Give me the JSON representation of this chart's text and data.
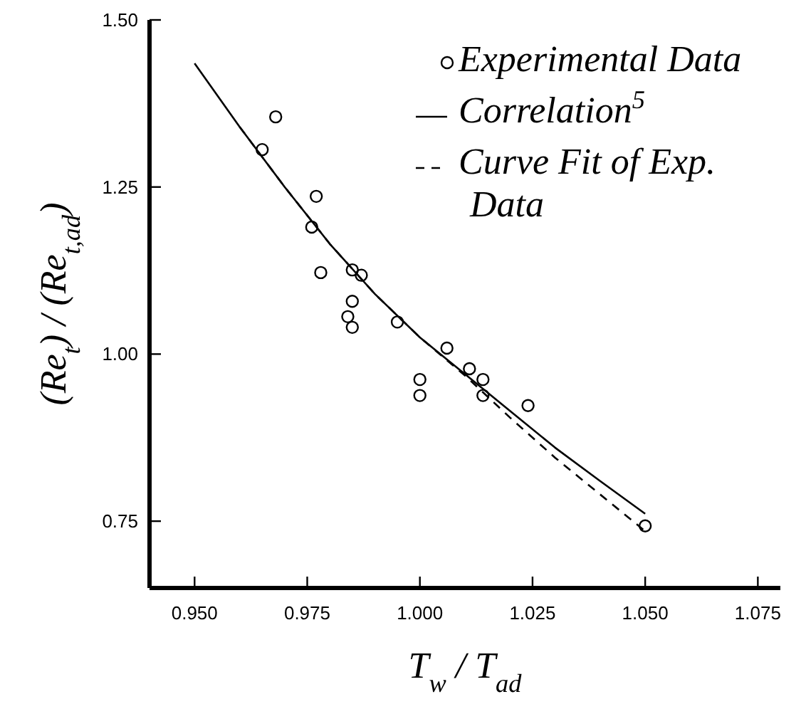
{
  "chart_data": {
    "type": "scatter",
    "xlabel": "T$_{w}$ / T$_{ad}$",
    "ylabel": "(Re$_{t}$) / (Re$_{t,ad}$)",
    "xlim": [
      0.94,
      1.08
    ],
    "ylim": [
      0.65,
      1.5
    ],
    "xticks": [
      {
        "value": 0.95,
        "label": "0.950"
      },
      {
        "value": 0.975,
        "label": "0.975"
      },
      {
        "value": 1.0,
        "label": "1.000"
      },
      {
        "value": 1.025,
        "label": "1.025"
      },
      {
        "value": 1.05,
        "label": "1.050"
      },
      {
        "value": 1.075,
        "label": "1.075"
      }
    ],
    "yticks": [
      {
        "value": 0.75,
        "label": "0.75"
      },
      {
        "value": 1.0,
        "label": "1.00"
      },
      {
        "value": 1.25,
        "label": "1.25"
      },
      {
        "value": 1.5,
        "label": "1.50"
      }
    ],
    "grid": false,
    "legend": "top right",
    "series": [
      {
        "name": "Experimental Data",
        "marker": "circle",
        "color": "#000000",
        "x": [
          0.968,
          0.965,
          0.977,
          0.976,
          0.978,
          0.985,
          0.987,
          0.985,
          0.984,
          0.985,
          0.995,
          1.006,
          1.0,
          1.0,
          1.011,
          1.014,
          1.014,
          1.024,
          1.05
        ],
        "values": [
          1.355,
          1.306,
          1.236,
          1.19,
          1.122,
          1.126,
          1.118,
          1.079,
          1.056,
          1.04,
          1.048,
          1.009,
          0.962,
          0.938,
          0.978,
          0.962,
          0.938,
          0.923,
          0.743
        ]
      },
      {
        "name": "Correlation$^{5}$",
        "type": "line",
        "line_style": "solid",
        "color": "#000000",
        "x": [
          0.95,
          0.96,
          0.97,
          0.98,
          0.99,
          1.0,
          1.01,
          1.02,
          1.03,
          1.04,
          1.05
        ],
        "values": [
          1.435,
          1.34,
          1.25,
          1.165,
          1.09,
          1.025,
          0.97,
          0.915,
          0.86,
          0.81,
          0.761
        ]
      },
      {
        "name": "Curve Fit of Exp. Data",
        "type": "line",
        "line_style": "dashed",
        "color": "#000000",
        "x": [
          0.96,
          0.97,
          0.98,
          0.99,
          1.0,
          1.01,
          1.02,
          1.03,
          1.04,
          1.05
        ],
        "values": [
          1.34,
          1.25,
          1.165,
          1.09,
          1.025,
          0.968,
          0.905,
          0.845,
          0.79,
          0.735
        ]
      }
    ]
  }
}
